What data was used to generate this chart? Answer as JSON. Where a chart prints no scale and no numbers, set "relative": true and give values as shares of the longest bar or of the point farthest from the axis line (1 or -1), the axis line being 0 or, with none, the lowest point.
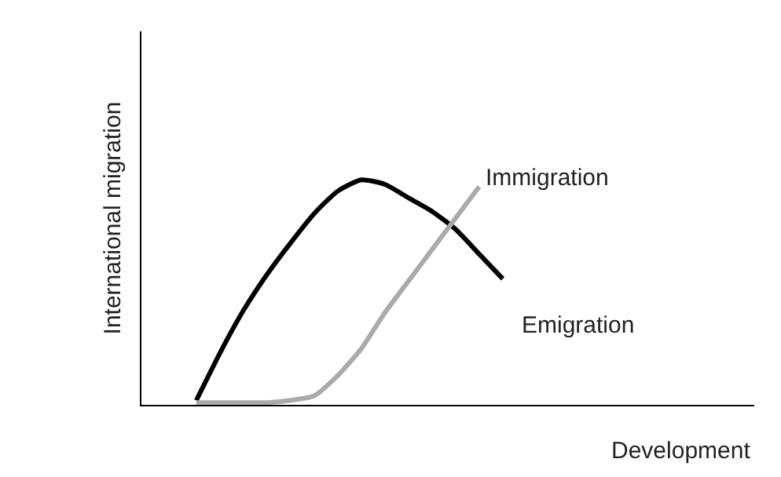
{
  "chart_data": {
    "type": "line",
    "relative": true,
    "xlabel": "Development",
    "ylabel": "International migration",
    "categories": [
      null,
      null,
      null,
      null,
      null,
      null,
      null,
      null,
      null,
      null,
      null,
      null,
      null,
      null,
      null,
      null,
      null,
      null,
      null,
      null,
      null,
      null,
      null,
      null,
      null,
      null
    ],
    "series": [
      {
        "name": "Emigration",
        "color": "#000000",
        "values": [
          null,
          null,
          0.02,
          0.23,
          0.42,
          0.58,
          0.72,
          0.85,
          0.95,
          1.0,
          0.98,
          0.92,
          0.86,
          0.78,
          0.67,
          0.56,
          null,
          null,
          null,
          null,
          null,
          null,
          null,
          null,
          null,
          null
        ]
      },
      {
        "name": "Immigration",
        "color": "#aaaaaa",
        "values": [
          null,
          null,
          0.01,
          0.01,
          0.01,
          0.01,
          0.02,
          0.04,
          0.13,
          0.25,
          0.41,
          0.55,
          0.69,
          0.83,
          0.97,
          null,
          null,
          null,
          null,
          null,
          null,
          null,
          null,
          null,
          null,
          null
        ]
      }
    ],
    "legend": false
  }
}
